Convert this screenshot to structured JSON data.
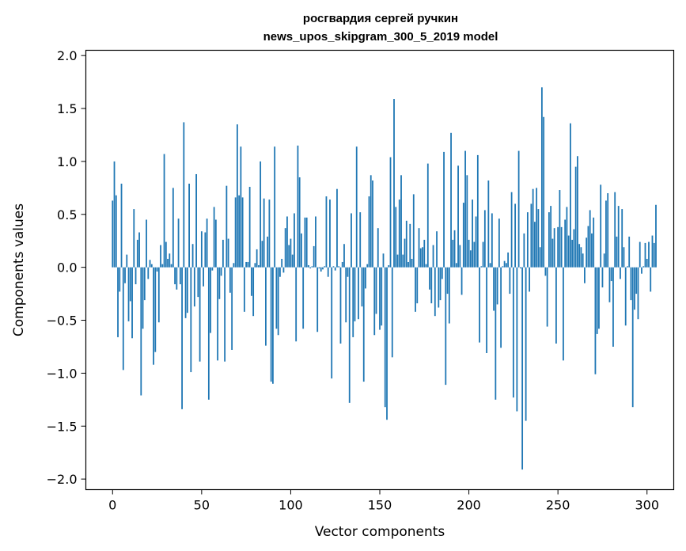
{
  "chart_data": {
    "type": "bar",
    "title_line1": "росгвардия сергей ручкин",
    "title_line2": "news_upos_skipgram_300_5_2019 model",
    "xlabel": "Vector components",
    "ylabel": "Components values",
    "xlim": [
      -15,
      315
    ],
    "ylim": [
      -2.1,
      2.05
    ],
    "x_ticks": [
      0,
      50,
      100,
      150,
      200,
      250,
      300
    ],
    "x_tick_labels": [
      "0",
      "50",
      "100",
      "150",
      "200",
      "250",
      "300"
    ],
    "y_ticks": [
      2.0,
      1.5,
      1.0,
      0.5,
      0.0,
      -0.5,
      -1.0,
      -1.5,
      -2.0
    ],
    "y_tick_labels": [
      "2.0",
      "1.5",
      "1.0",
      "0.5",
      "0.0",
      "−0.5",
      "−1.0",
      "−1.5",
      "−2.0"
    ],
    "grid": false,
    "bar_color": "#1f77b4",
    "values": [
      0.63,
      1.0,
      0.68,
      -0.66,
      -0.23,
      0.79,
      -0.97,
      -0.15,
      0.12,
      -0.51,
      -0.32,
      -0.67,
      0.55,
      -0.16,
      0.26,
      0.33,
      -1.21,
      -0.58,
      -0.31,
      0.45,
      -0.11,
      0.07,
      0.03,
      -0.92,
      -0.8,
      -0.04,
      -0.52,
      0.21,
      0.03,
      1.07,
      0.24,
      0.08,
      0.13,
      0.03,
      0.75,
      -0.16,
      -0.21,
      0.46,
      -0.16,
      -1.34,
      1.37,
      -0.48,
      -0.43,
      0.79,
      -0.99,
      0.22,
      -0.37,
      0.88,
      -0.28,
      -0.89,
      0.34,
      -0.18,
      0.33,
      0.46,
      -1.25,
      -0.62,
      -0.03,
      0.57,
      0.45,
      -0.88,
      -0.3,
      -0.08,
      0.26,
      -0.89,
      0.77,
      0.27,
      -0.24,
      -0.78,
      0.04,
      0.66,
      1.35,
      0.68,
      1.14,
      0.66,
      -0.42,
      0.05,
      0.05,
      0.76,
      -0.27,
      -0.46,
      0.04,
      0.17,
      0.02,
      1.0,
      0.25,
      0.65,
      -0.74,
      0.29,
      0.64,
      -1.08,
      -1.1,
      1.14,
      -0.58,
      -0.64,
      -0.09,
      0.08,
      -0.05,
      0.37,
      0.48,
      0.21,
      0.27,
      0.12,
      0.51,
      -0.7,
      1.15,
      0.85,
      0.32,
      -0.58,
      0.47,
      0.47,
      0.02,
      -0.01,
      0.01,
      0.2,
      0.48,
      -0.61,
      -0.01,
      -0.04,
      -0.02,
      0.01,
      0.67,
      -0.09,
      0.64,
      -1.05,
      0.01,
      -0.03,
      0.74,
      0.01,
      -0.72,
      0.05,
      0.22,
      -0.52,
      -0.09,
      -1.28,
      0.51,
      -0.66,
      -0.51,
      1.14,
      -0.49,
      0.52,
      -0.37,
      -1.08,
      -0.2,
      0.03,
      0.67,
      0.87,
      0.82,
      -0.64,
      -0.44,
      0.37,
      -0.59,
      -0.55,
      0.13,
      -1.32,
      -1.44,
      0.02,
      1.04,
      -0.85,
      1.59,
      0.57,
      0.12,
      0.64,
      0.87,
      0.12,
      0.27,
      0.44,
      0.05,
      0.41,
      0.08,
      0.69,
      -0.42,
      -0.34,
      0.37,
      0.18,
      0.19,
      0.26,
      0.03,
      0.98,
      -0.21,
      -0.34,
      0.21,
      -0.46,
      0.34,
      -0.38,
      -0.31,
      -0.11,
      1.09,
      -1.11,
      -0.25,
      -0.53,
      1.27,
      0.26,
      0.35,
      0.04,
      0.96,
      0.21,
      -0.26,
      0.61,
      1.1,
      0.87,
      0.26,
      0.16,
      0.64,
      0.24,
      0.48,
      1.06,
      -0.71,
      0.01,
      0.24,
      0.54,
      -0.81,
      0.82,
      0.04,
      0.51,
      -0.41,
      -1.25,
      -0.35,
      0.46,
      -0.76,
      0.01,
      0.06,
      0.04,
      0.14,
      -0.25,
      0.71,
      -1.23,
      0.6,
      -1.36,
      1.1,
      -0.01,
      -1.91,
      0.32,
      -1.45,
      0.52,
      -0.23,
      0.6,
      0.74,
      0.43,
      0.75,
      0.55,
      0.19,
      1.7,
      1.42,
      -0.08,
      -0.56,
      0.52,
      0.58,
      0.27,
      0.37,
      -0.72,
      0.38,
      0.73,
      0.38,
      -0.88,
      0.45,
      0.57,
      0.3,
      1.36,
      0.26,
      0.36,
      0.95,
      1.05,
      0.22,
      0.19,
      0.13,
      -0.15,
      0.28,
      0.39,
      0.54,
      0.32,
      0.47,
      -1.01,
      -0.63,
      -0.58,
      0.78,
      -0.19,
      0.13,
      0.63,
      0.7,
      -0.33,
      -0.13,
      -0.75,
      0.71,
      0.29,
      0.58,
      -0.11,
      0.55,
      0.19,
      -0.55,
      0.01,
      0.29,
      -0.31,
      -1.32,
      -0.4,
      -0.25,
      -0.49,
      0.24,
      -0.06,
      0.01,
      0.23,
      0.08,
      0.24,
      -0.23,
      0.3,
      0.23,
      0.59
    ]
  }
}
